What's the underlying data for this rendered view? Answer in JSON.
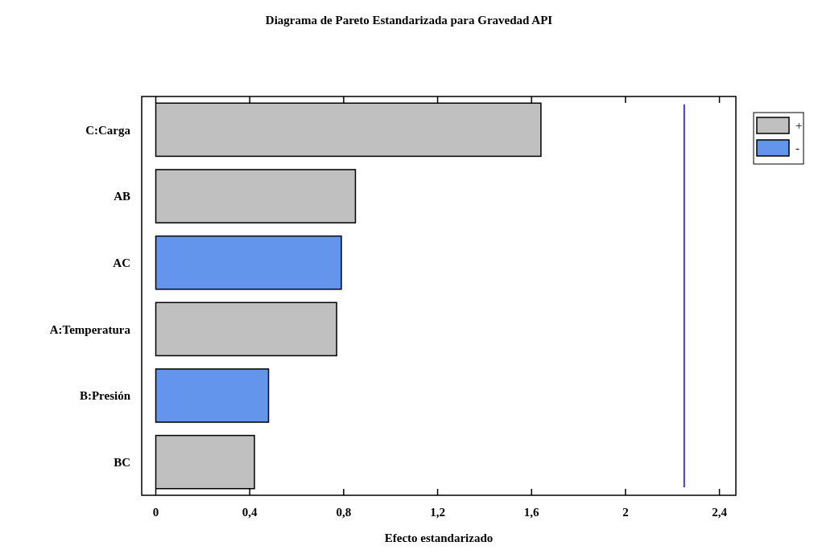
{
  "chart_data": {
    "type": "bar",
    "orientation": "horizontal",
    "title": "Diagrama de Pareto Estandarizada para Gravedad API",
    "xlabel": "Efecto estandarizado",
    "categories": [
      "C:Carga",
      "AB",
      "AC",
      "A:Temperatura",
      "B:Presión",
      "BC"
    ],
    "series": [
      {
        "name": "+",
        "color": "#c0c0c0",
        "values": [
          1.64,
          0.85,
          null,
          0.77,
          null,
          0.42
        ]
      },
      {
        "name": "-",
        "color": "#6495ed",
        "values": [
          null,
          null,
          0.79,
          null,
          0.48,
          null
        ]
      }
    ],
    "xlim": [
      -0.06,
      2.47
    ],
    "xticks": [
      0,
      {
        "value": 0.4,
        "label": "0,4"
      },
      {
        "value": 0.8,
        "label": "0,8"
      },
      {
        "value": 1.2,
        "label": "1,2"
      },
      {
        "value": 1.6,
        "label": "1,6"
      },
      2,
      {
        "value": 2.4,
        "label": "2,4"
      }
    ],
    "ref_lines": [
      {
        "axis": "x",
        "value": 2.25,
        "color": "#0000ff"
      }
    ],
    "legend": "right",
    "grid": false
  }
}
